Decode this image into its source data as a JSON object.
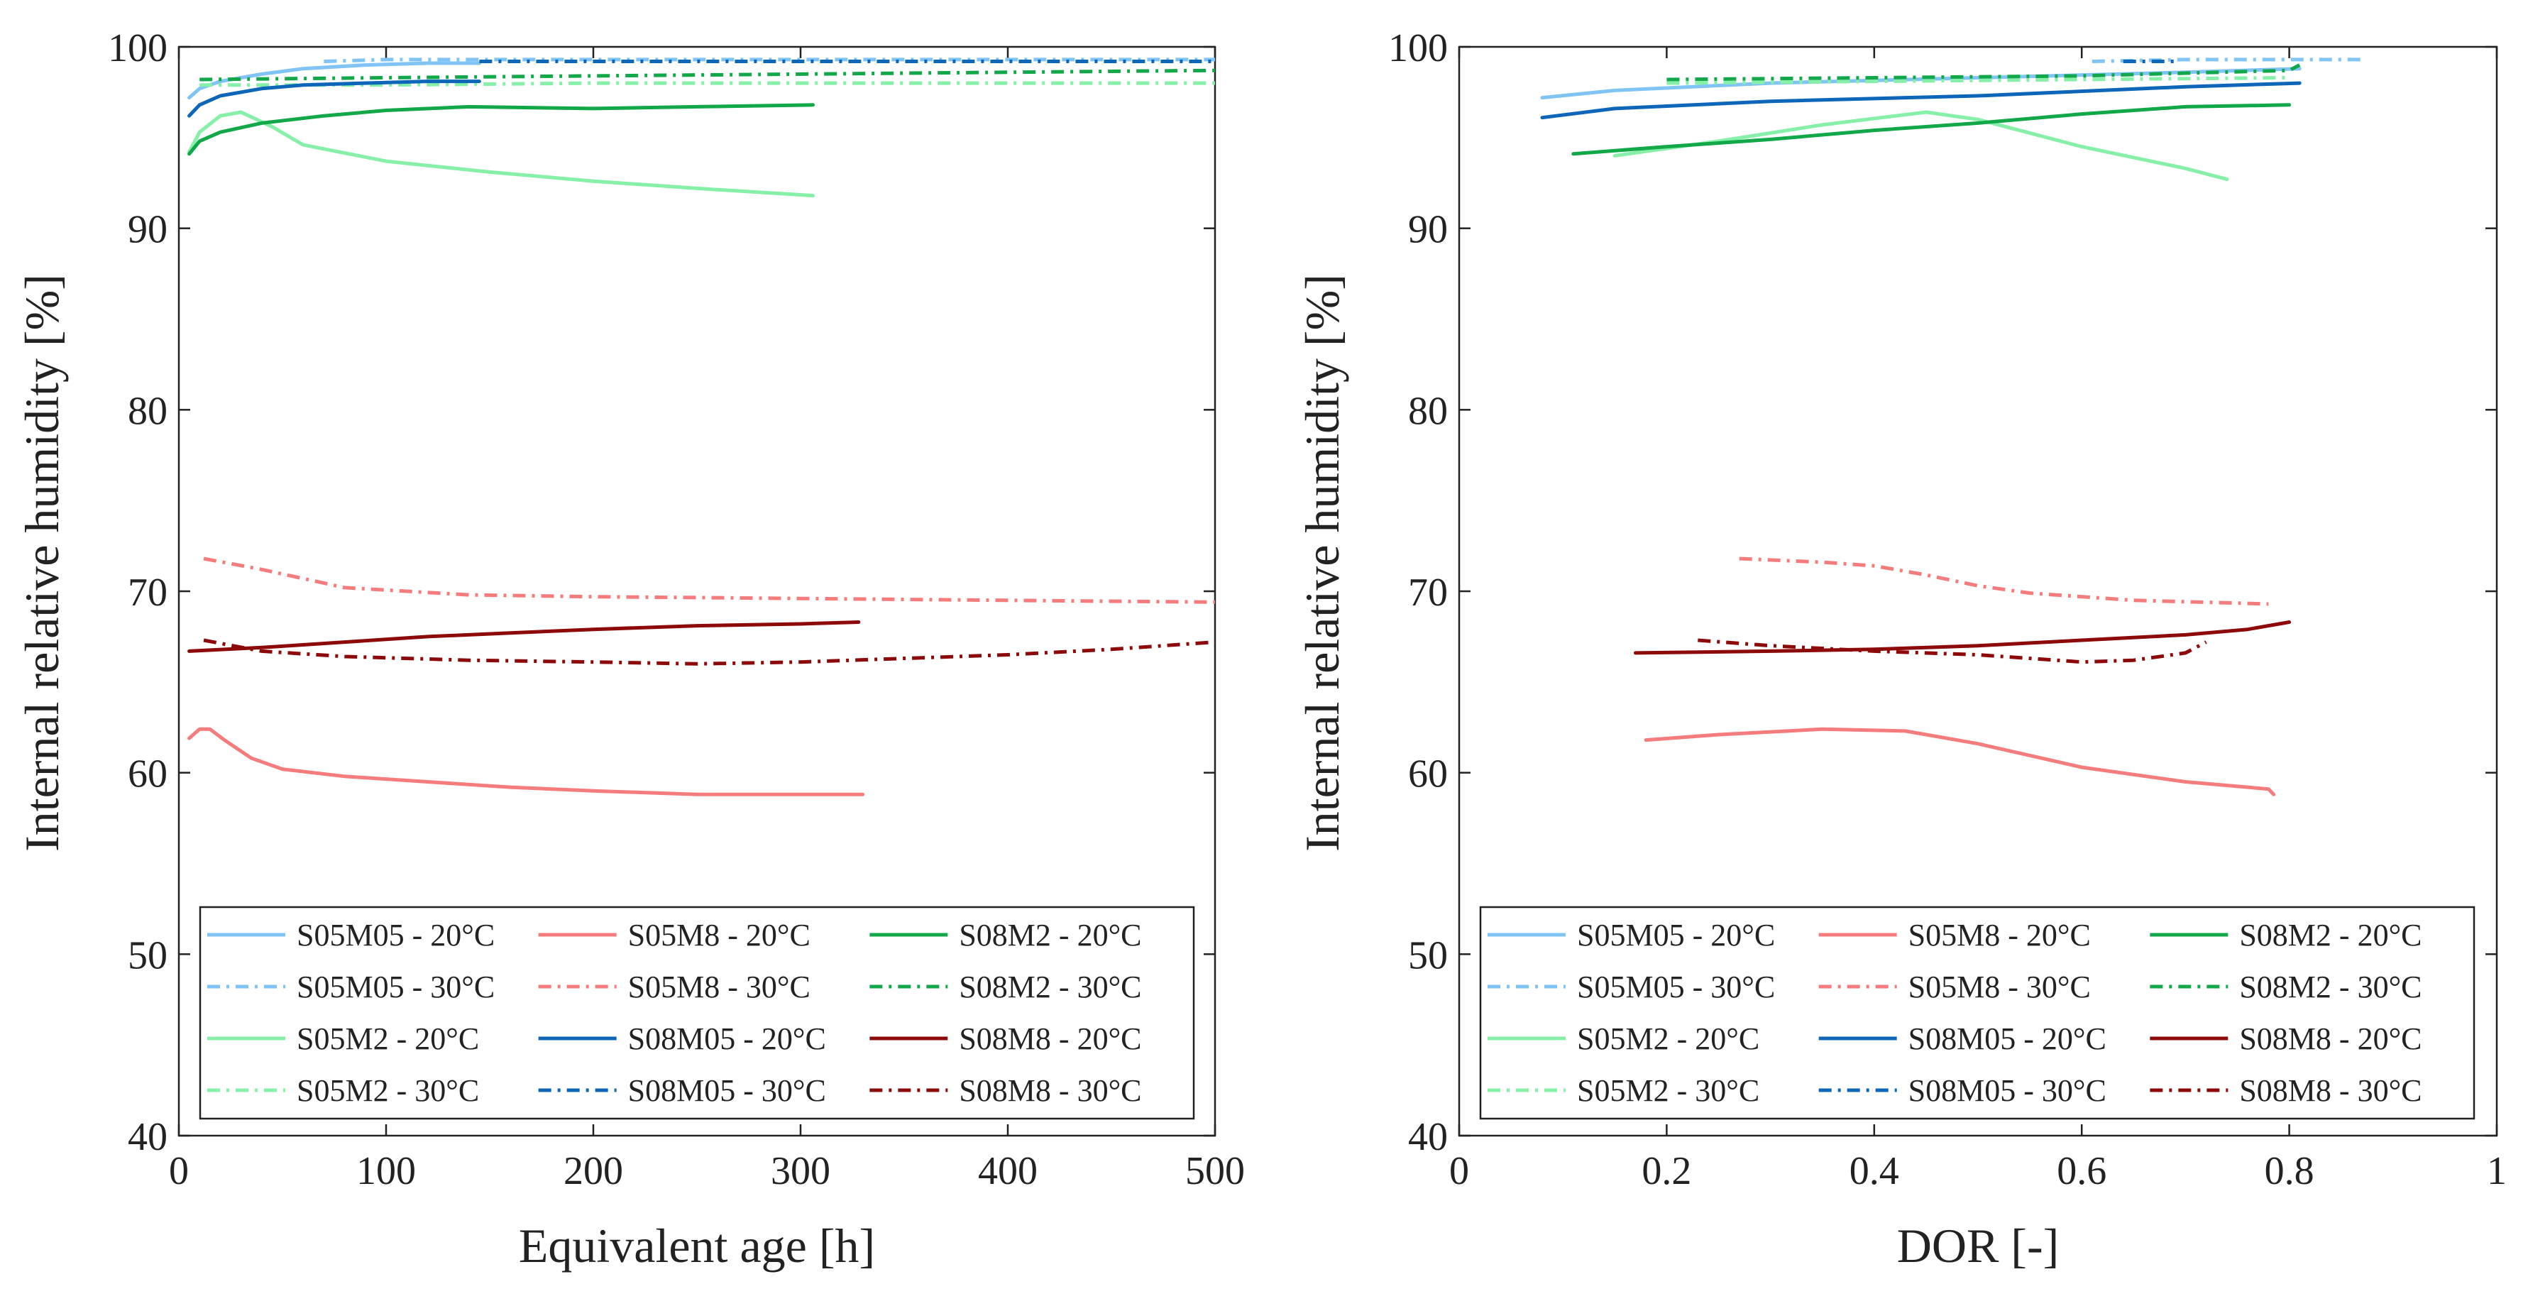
{
  "chart_data": [
    {
      "type": "line",
      "xlabel": "Equivalent age [h]",
      "ylabel": "Internal relative humidity [%]",
      "xlim": [
        0,
        500
      ],
      "ylim": [
        40,
        100
      ],
      "xticks": [
        "0",
        "100",
        "200",
        "300",
        "400",
        "500"
      ],
      "yticks": [
        "40",
        "50",
        "60",
        "70",
        "80",
        "90",
        "100"
      ],
      "grid": false,
      "legend_position": "bottom",
      "series": [
        {
          "name": "S05M05 - 20°C",
          "color": "#7fc4f4",
          "dash": "solid",
          "x": [
            5,
            10,
            20,
            40,
            60,
            90,
            120,
            145
          ],
          "y": [
            97.2,
            97.7,
            98.1,
            98.5,
            98.8,
            99.0,
            99.1,
            99.1
          ]
        },
        {
          "name": "S05M05 - 30°C",
          "color": "#7fc4f4",
          "dash": "dashdot",
          "x": [
            70,
            100,
            150,
            200,
            300,
            400,
            500
          ],
          "y": [
            99.2,
            99.3,
            99.3,
            99.3,
            99.3,
            99.3,
            99.3
          ]
        },
        {
          "name": "S05M2 - 20°C",
          "color": "#86f0a8",
          "dash": "solid",
          "x": [
            5,
            10,
            20,
            30,
            45,
            60,
            100,
            150,
            200,
            250,
            306
          ],
          "y": [
            94.2,
            95.3,
            96.2,
            96.4,
            95.6,
            94.6,
            93.7,
            93.1,
            92.6,
            92.2,
            91.8
          ]
        },
        {
          "name": "S05M2 - 30°C",
          "color": "#86f0a8",
          "dash": "dashdot",
          "x": [
            10,
            100,
            200,
            300,
            400,
            500
          ],
          "y": [
            97.9,
            97.9,
            98.0,
            98.0,
            98.0,
            98.0
          ]
        },
        {
          "name": "S05M8 - 20°C",
          "color": "#f47c7c",
          "dash": "solid",
          "x": [
            5,
            10,
            15,
            22,
            35,
            50,
            80,
            120,
            160,
            200,
            250,
            300,
            330
          ],
          "y": [
            61.9,
            62.4,
            62.4,
            61.8,
            60.8,
            60.2,
            59.8,
            59.5,
            59.2,
            59.0,
            58.8,
            58.8,
            58.8
          ]
        },
        {
          "name": "S05M8 - 30°C",
          "color": "#f47c7c",
          "dash": "dashdot",
          "x": [
            12,
            40,
            80,
            140,
            200,
            300,
            400,
            500
          ],
          "y": [
            71.8,
            71.2,
            70.2,
            69.8,
            69.7,
            69.6,
            69.5,
            69.4
          ]
        },
        {
          "name": "S08M05 - 20°C",
          "color": "#0d66b8",
          "dash": "solid",
          "x": [
            5,
            10,
            20,
            40,
            60,
            90,
            120,
            145
          ],
          "y": [
            96.2,
            96.8,
            97.3,
            97.7,
            97.9,
            98.0,
            98.1,
            98.1
          ]
        },
        {
          "name": "S08M05 - 30°C",
          "color": "#0d66b8",
          "dash": "dashdot",
          "x": [
            145,
            200,
            300,
            400,
            500
          ],
          "y": [
            99.2,
            99.2,
            99.2,
            99.2,
            99.2
          ]
        },
        {
          "name": "S08M2 - 20°C",
          "color": "#12a84a",
          "dash": "solid",
          "x": [
            5,
            10,
            20,
            40,
            70,
            100,
            140,
            200,
            250,
            306
          ],
          "y": [
            94.1,
            94.8,
            95.3,
            95.8,
            96.2,
            96.5,
            96.7,
            96.6,
            96.7,
            96.8
          ]
        },
        {
          "name": "S08M2 - 30°C",
          "color": "#12a84a",
          "dash": "dashdot",
          "x": [
            10,
            100,
            200,
            300,
            400,
            500
          ],
          "y": [
            98.2,
            98.3,
            98.4,
            98.5,
            98.6,
            98.7
          ]
        },
        {
          "name": "S08M8 - 20°C",
          "color": "#8c0a0a",
          "dash": "solid",
          "x": [
            5,
            40,
            80,
            120,
            160,
            200,
            250,
            300,
            328
          ],
          "y": [
            66.7,
            66.9,
            67.2,
            67.5,
            67.7,
            67.9,
            68.1,
            68.2,
            68.3
          ]
        },
        {
          "name": "S08M8 - 30°C",
          "color": "#8c0a0a",
          "dash": "dashdot",
          "x": [
            12,
            40,
            80,
            140,
            200,
            250,
            300,
            350,
            400,
            450,
            500
          ],
          "y": [
            67.3,
            66.7,
            66.4,
            66.2,
            66.1,
            66.0,
            66.1,
            66.3,
            66.5,
            66.8,
            67.2
          ]
        }
      ]
    },
    {
      "type": "line",
      "xlabel": "DOR [-]",
      "ylabel": "Internal relative humidity [%]",
      "xlim": [
        0,
        1
      ],
      "ylim": [
        40,
        100
      ],
      "xticks": [
        "0",
        "0.2",
        "0.4",
        "0.6",
        "0.8",
        "1"
      ],
      "yticks": [
        "40",
        "50",
        "60",
        "70",
        "80",
        "90",
        "100"
      ],
      "grid": false,
      "legend_position": "bottom",
      "series": [
        {
          "name": "S05M05 - 20°C",
          "color": "#7fc4f4",
          "dash": "solid",
          "x": [
            0.08,
            0.15,
            0.3,
            0.5,
            0.7,
            0.81
          ],
          "y": [
            97.2,
            97.6,
            98.0,
            98.3,
            98.6,
            98.8
          ]
        },
        {
          "name": "S05M05 - 30°C",
          "color": "#7fc4f4",
          "dash": "dashdot",
          "x": [
            0.61,
            0.7,
            0.8,
            0.87
          ],
          "y": [
            99.2,
            99.3,
            99.3,
            99.3
          ]
        },
        {
          "name": "S05M2 - 20°C",
          "color": "#86f0a8",
          "dash": "solid",
          "x": [
            0.15,
            0.25,
            0.35,
            0.45,
            0.5,
            0.6,
            0.7,
            0.74
          ],
          "y": [
            94.0,
            94.8,
            95.7,
            96.4,
            96.0,
            94.5,
            93.3,
            92.7
          ]
        },
        {
          "name": "S05M2 - 30°C",
          "color": "#86f0a8",
          "dash": "dashdot",
          "x": [
            0.2,
            0.4,
            0.6,
            0.8
          ],
          "y": [
            98.0,
            98.1,
            98.2,
            98.3
          ]
        },
        {
          "name": "S05M8 - 20°C",
          "color": "#f47c7c",
          "dash": "solid",
          "x": [
            0.18,
            0.25,
            0.35,
            0.43,
            0.5,
            0.6,
            0.7,
            0.78,
            0.785
          ],
          "y": [
            61.8,
            62.1,
            62.4,
            62.3,
            61.6,
            60.3,
            59.5,
            59.1,
            58.8
          ]
        },
        {
          "name": "S05M8 - 30°C",
          "color": "#f47c7c",
          "dash": "dashdot",
          "x": [
            0.27,
            0.35,
            0.4,
            0.45,
            0.5,
            0.55,
            0.65,
            0.78
          ],
          "y": [
            71.8,
            71.6,
            71.4,
            70.9,
            70.3,
            69.9,
            69.5,
            69.3
          ]
        },
        {
          "name": "S08M05 - 20°C",
          "color": "#0d66b8",
          "dash": "solid",
          "x": [
            0.08,
            0.15,
            0.3,
            0.5,
            0.7,
            0.81
          ],
          "y": [
            96.1,
            96.6,
            97.0,
            97.3,
            97.8,
            98.0
          ]
        },
        {
          "name": "S08M05 - 30°C",
          "color": "#0d66b8",
          "dash": "dashdot",
          "x": [
            0.64,
            0.69
          ],
          "y": [
            99.2,
            99.2
          ]
        },
        {
          "name": "S08M2 - 20°C",
          "color": "#12a84a",
          "dash": "solid",
          "x": [
            0.11,
            0.2,
            0.3,
            0.4,
            0.5,
            0.6,
            0.7,
            0.8
          ],
          "y": [
            94.1,
            94.5,
            94.9,
            95.4,
            95.8,
            96.3,
            96.7,
            96.8
          ]
        },
        {
          "name": "S08M2 - 30°C",
          "color": "#12a84a",
          "dash": "dashdot",
          "x": [
            0.2,
            0.4,
            0.6,
            0.8,
            0.81
          ],
          "y": [
            98.2,
            98.3,
            98.4,
            98.7,
            99.0
          ]
        },
        {
          "name": "S08M8 - 20°C",
          "color": "#8c0a0a",
          "dash": "solid",
          "x": [
            0.17,
            0.3,
            0.4,
            0.5,
            0.6,
            0.7,
            0.76,
            0.8
          ],
          "y": [
            66.6,
            66.7,
            66.8,
            67.0,
            67.3,
            67.6,
            67.9,
            68.3
          ]
        },
        {
          "name": "S08M8 - 30°C",
          "color": "#8c0a0a",
          "dash": "dashdot",
          "x": [
            0.23,
            0.3,
            0.4,
            0.5,
            0.6,
            0.65,
            0.7,
            0.72
          ],
          "y": [
            67.3,
            67.0,
            66.7,
            66.5,
            66.1,
            66.2,
            66.6,
            67.2
          ]
        }
      ]
    }
  ]
}
